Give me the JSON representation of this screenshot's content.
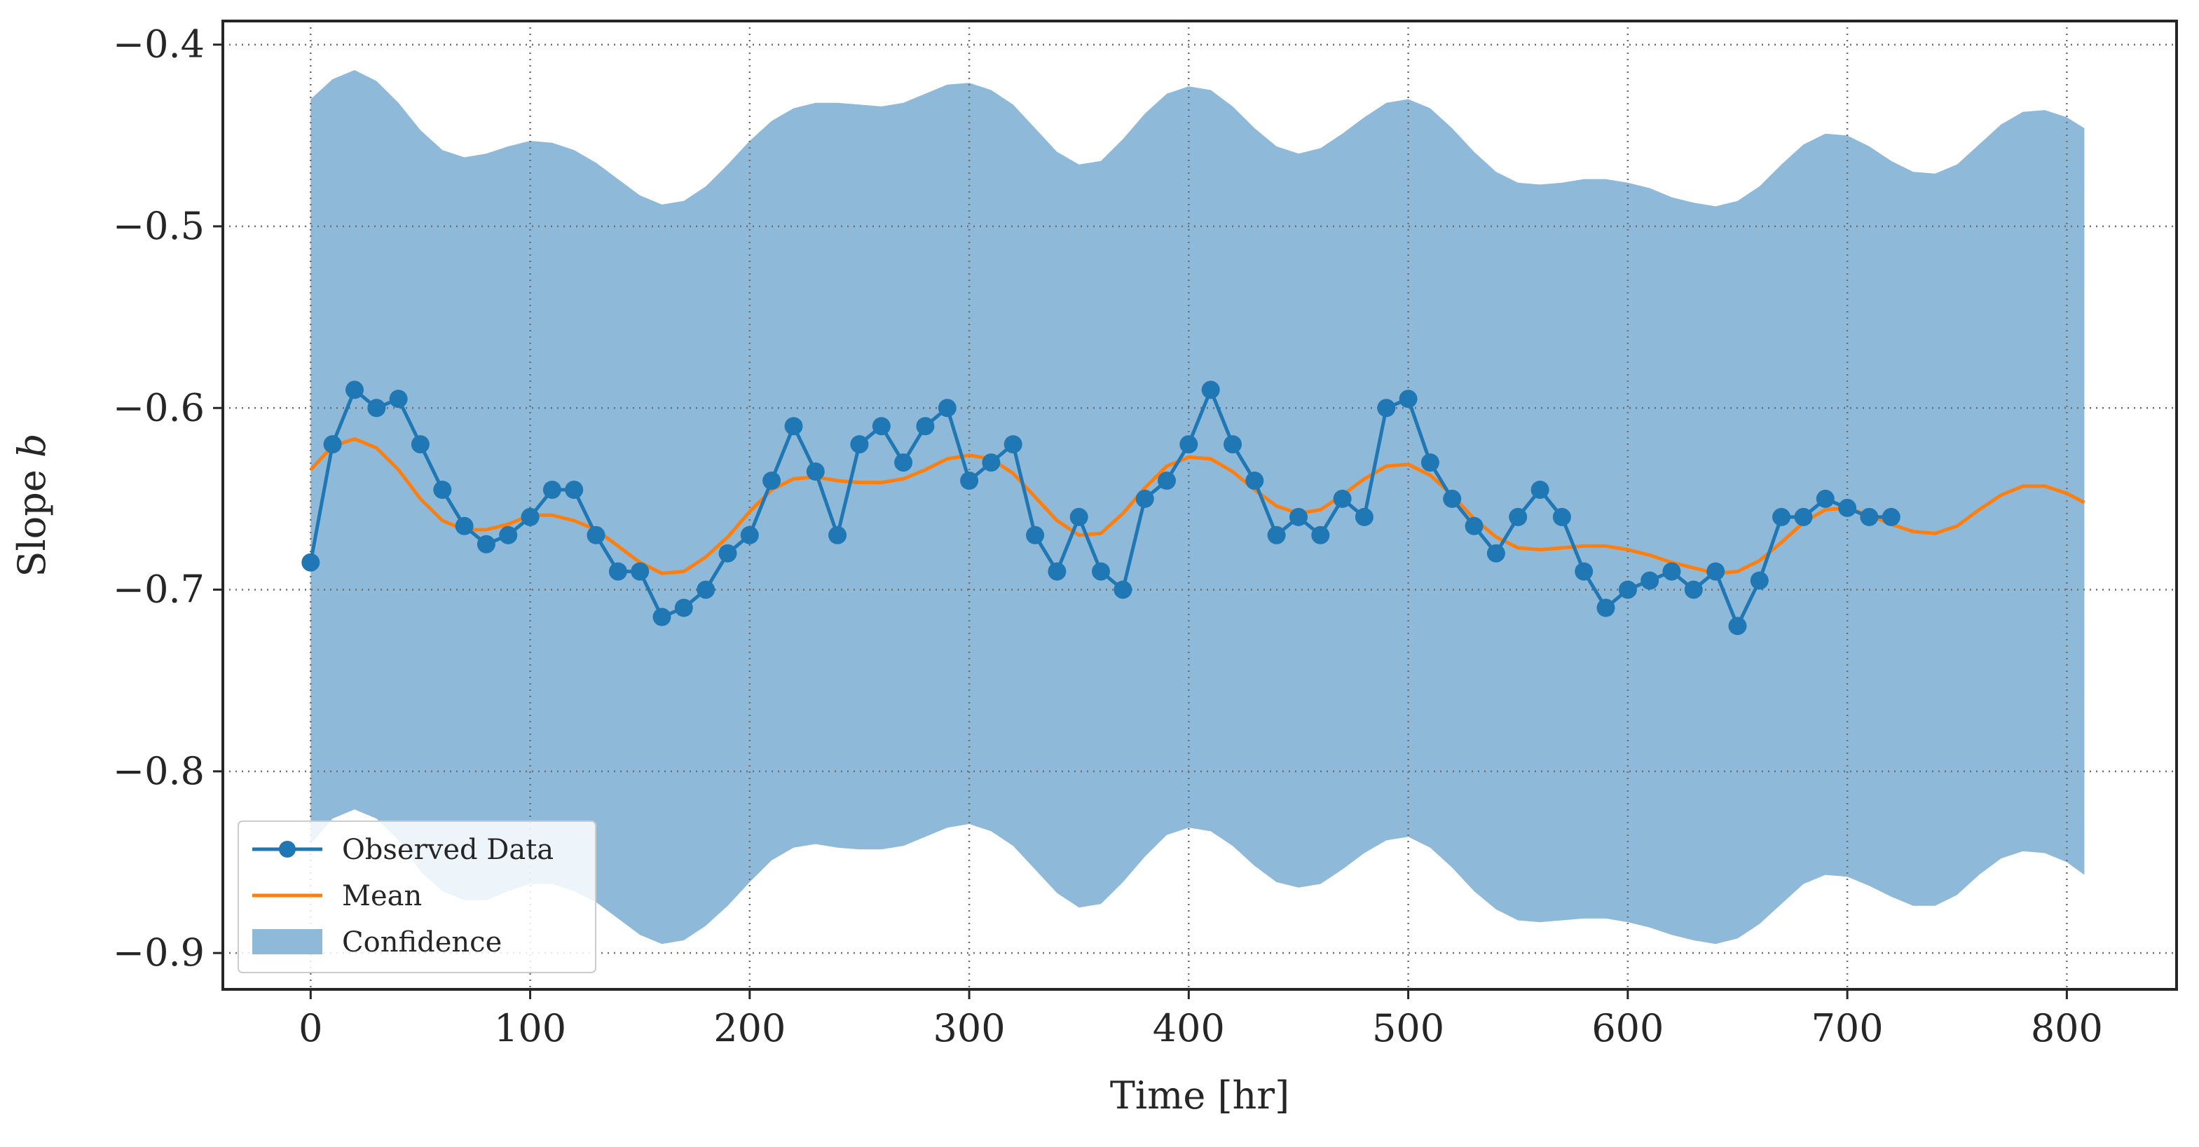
{
  "chart_data": {
    "type": "line",
    "title": "",
    "xlabel": "Time [hr]",
    "ylabel": "Slope b",
    "ylabel_parts": {
      "text": "Slope ",
      "var": "b"
    },
    "xlim": [
      -40,
      850
    ],
    "ylim": [
      -0.92,
      -0.387
    ],
    "xticks": [
      0,
      100,
      200,
      300,
      400,
      500,
      600,
      700,
      800
    ],
    "xtick_labels": [
      "0",
      "100",
      "200",
      "300",
      "400",
      "500",
      "600",
      "700",
      "800"
    ],
    "yticks": [
      -0.9,
      -0.8,
      -0.7,
      -0.6,
      -0.5,
      -0.4
    ],
    "ytick_labels": [
      "−0.9",
      "−0.8",
      "−0.7",
      "−0.6",
      "−0.5",
      "−0.4"
    ],
    "grid": true,
    "grid_style": "dotted",
    "legend_position": "lower-left",
    "colors": {
      "observed": "#1f77b4",
      "mean": "#ff7f0e",
      "confidence": "#8fb9d9"
    },
    "series": [
      {
        "name": "Observed Data",
        "kind": "line-markers",
        "x": [
          0,
          10,
          20,
          30,
          40,
          50,
          60,
          70,
          80,
          90,
          100,
          110,
          120,
          130,
          140,
          150,
          160,
          170,
          180,
          190,
          200,
          210,
          220,
          230,
          240,
          250,
          260,
          270,
          280,
          290,
          300,
          310,
          320,
          330,
          340,
          350,
          360,
          370,
          380,
          390,
          400,
          410,
          420,
          430,
          440,
          450,
          460,
          470,
          480,
          490,
          500,
          510,
          520,
          530,
          540,
          550,
          560,
          570,
          580,
          590,
          600,
          610,
          620,
          630,
          640,
          650,
          660,
          670,
          680,
          690,
          700,
          710,
          720
        ],
        "y": [
          -0.685,
          -0.62,
          -0.59,
          -0.6,
          -0.595,
          -0.62,
          -0.645,
          -0.665,
          -0.675,
          -0.67,
          -0.66,
          -0.645,
          -0.645,
          -0.67,
          -0.69,
          -0.69,
          -0.715,
          -0.71,
          -0.7,
          -0.68,
          -0.67,
          -0.64,
          -0.61,
          -0.635,
          -0.67,
          -0.62,
          -0.61,
          -0.63,
          -0.61,
          -0.6,
          -0.64,
          -0.63,
          -0.62,
          -0.67,
          -0.69,
          -0.66,
          -0.69,
          -0.7,
          -0.65,
          -0.64,
          -0.62,
          -0.59,
          -0.62,
          -0.64,
          -0.67,
          -0.66,
          -0.67,
          -0.65,
          -0.66,
          -0.6,
          -0.595,
          -0.63,
          -0.65,
          -0.665,
          -0.68,
          -0.66,
          -0.645,
          -0.66,
          -0.69,
          -0.71,
          -0.7,
          -0.695,
          -0.69,
          -0.7,
          -0.69,
          -0.72,
          -0.695,
          -0.66,
          -0.66,
          -0.65,
          -0.655,
          -0.66,
          -0.66
        ]
      },
      {
        "name": "Mean",
        "kind": "line",
        "x": [
          0,
          10,
          20,
          30,
          40,
          50,
          60,
          70,
          80,
          90,
          100,
          110,
          120,
          130,
          140,
          150,
          160,
          170,
          180,
          190,
          200,
          210,
          220,
          230,
          240,
          250,
          260,
          270,
          280,
          290,
          300,
          310,
          320,
          330,
          340,
          350,
          360,
          370,
          380,
          390,
          400,
          410,
          420,
          430,
          440,
          450,
          460,
          470,
          480,
          490,
          500,
          510,
          520,
          530,
          540,
          550,
          560,
          570,
          580,
          590,
          600,
          610,
          620,
          630,
          640,
          650,
          660,
          670,
          680,
          690,
          700,
          710,
          720,
          730,
          740,
          750,
          760,
          770,
          780,
          790,
          800,
          808
        ],
        "y": [
          -0.634,
          -0.621,
          -0.617,
          -0.622,
          -0.634,
          -0.65,
          -0.662,
          -0.667,
          -0.667,
          -0.664,
          -0.659,
          -0.659,
          -0.662,
          -0.667,
          -0.676,
          -0.685,
          -0.691,
          -0.69,
          -0.682,
          -0.671,
          -0.657,
          -0.645,
          -0.639,
          -0.638,
          -0.64,
          -0.641,
          -0.641,
          -0.639,
          -0.634,
          -0.628,
          -0.626,
          -0.628,
          -0.636,
          -0.649,
          -0.662,
          -0.67,
          -0.669,
          -0.658,
          -0.644,
          -0.632,
          -0.627,
          -0.628,
          -0.635,
          -0.645,
          -0.654,
          -0.658,
          -0.656,
          -0.648,
          -0.639,
          -0.632,
          -0.631,
          -0.637,
          -0.648,
          -0.661,
          -0.671,
          -0.677,
          -0.678,
          -0.677,
          -0.676,
          -0.676,
          -0.678,
          -0.681,
          -0.685,
          -0.688,
          -0.691,
          -0.69,
          -0.684,
          -0.674,
          -0.663,
          -0.656,
          -0.655,
          -0.659,
          -0.664,
          -0.668,
          -0.669,
          -0.665,
          -0.656,
          -0.648,
          -0.643,
          -0.643,
          -0.647,
          -0.652
        ]
      },
      {
        "name": "Confidence",
        "kind": "band",
        "x": [
          0,
          10,
          20,
          30,
          40,
          50,
          60,
          70,
          80,
          90,
          100,
          110,
          120,
          130,
          140,
          150,
          160,
          170,
          180,
          190,
          200,
          210,
          220,
          230,
          240,
          250,
          260,
          270,
          280,
          290,
          300,
          310,
          320,
          330,
          340,
          350,
          360,
          370,
          380,
          390,
          400,
          410,
          420,
          430,
          440,
          450,
          460,
          470,
          480,
          490,
          500,
          510,
          520,
          530,
          540,
          550,
          560,
          570,
          580,
          590,
          600,
          610,
          620,
          630,
          640,
          650,
          660,
          670,
          680,
          690,
          700,
          710,
          720,
          730,
          740,
          750,
          760,
          770,
          780,
          790,
          800,
          808
        ],
        "upper": [
          -0.43,
          -0.419,
          -0.414,
          -0.42,
          -0.432,
          -0.447,
          -0.458,
          -0.462,
          -0.46,
          -0.456,
          -0.453,
          -0.454,
          -0.458,
          -0.465,
          -0.474,
          -0.483,
          -0.488,
          -0.486,
          -0.478,
          -0.466,
          -0.453,
          -0.442,
          -0.435,
          -0.432,
          -0.432,
          -0.433,
          -0.434,
          -0.432,
          -0.427,
          -0.422,
          -0.421,
          -0.425,
          -0.433,
          -0.446,
          -0.459,
          -0.466,
          -0.464,
          -0.452,
          -0.438,
          -0.427,
          -0.423,
          -0.425,
          -0.434,
          -0.446,
          -0.456,
          -0.46,
          -0.457,
          -0.449,
          -0.44,
          -0.432,
          -0.43,
          -0.435,
          -0.446,
          -0.459,
          -0.47,
          -0.476,
          -0.477,
          -0.476,
          -0.474,
          -0.474,
          -0.476,
          -0.479,
          -0.484,
          -0.487,
          -0.489,
          -0.486,
          -0.478,
          -0.466,
          -0.455,
          -0.449,
          -0.45,
          -0.456,
          -0.464,
          -0.47,
          -0.471,
          -0.466,
          -0.455,
          -0.444,
          -0.437,
          -0.436,
          -0.44,
          -0.446
        ],
        "lower": [
          -0.84,
          -0.826,
          -0.821,
          -0.826,
          -0.838,
          -0.855,
          -0.866,
          -0.871,
          -0.871,
          -0.866,
          -0.862,
          -0.862,
          -0.866,
          -0.872,
          -0.881,
          -0.89,
          -0.895,
          -0.893,
          -0.885,
          -0.874,
          -0.861,
          -0.849,
          -0.842,
          -0.84,
          -0.842,
          -0.843,
          -0.843,
          -0.841,
          -0.836,
          -0.831,
          -0.829,
          -0.833,
          -0.841,
          -0.854,
          -0.867,
          -0.875,
          -0.873,
          -0.861,
          -0.847,
          -0.835,
          -0.831,
          -0.833,
          -0.841,
          -0.852,
          -0.861,
          -0.864,
          -0.862,
          -0.854,
          -0.845,
          -0.838,
          -0.836,
          -0.842,
          -0.853,
          -0.866,
          -0.876,
          -0.882,
          -0.883,
          -0.882,
          -0.881,
          -0.881,
          -0.883,
          -0.886,
          -0.89,
          -0.893,
          -0.895,
          -0.892,
          -0.884,
          -0.873,
          -0.862,
          -0.857,
          -0.858,
          -0.863,
          -0.869,
          -0.874,
          -0.874,
          -0.868,
          -0.857,
          -0.848,
          -0.844,
          -0.845,
          -0.85,
          -0.857
        ]
      }
    ]
  }
}
